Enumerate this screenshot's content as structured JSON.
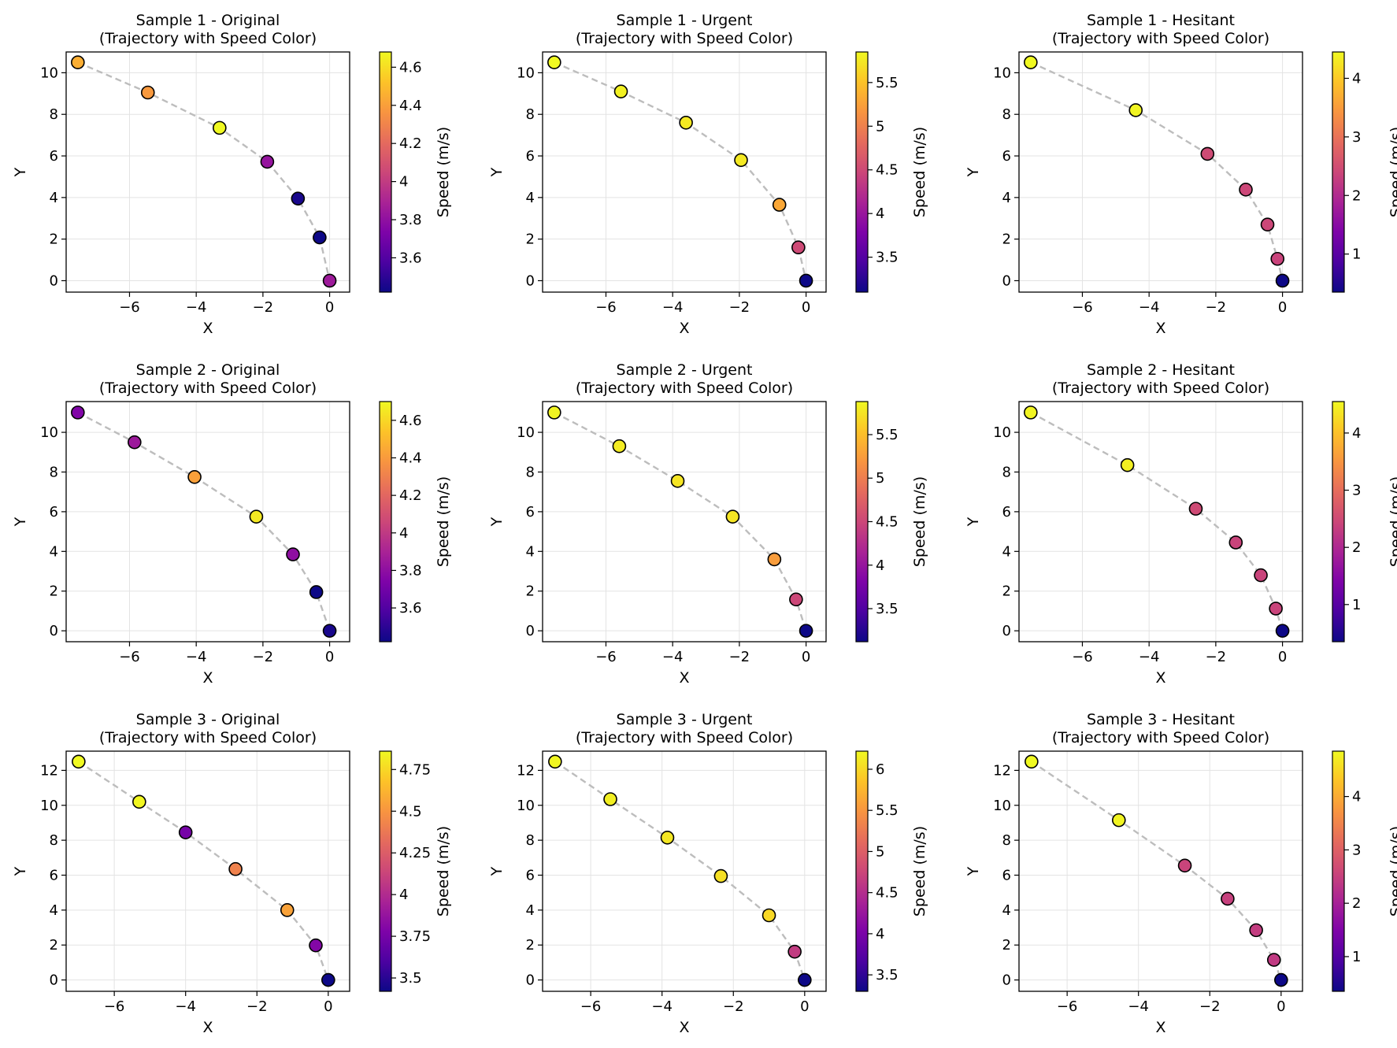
{
  "chart_data": [
    {
      "type": "scatter",
      "title": "Sample 1 - Original",
      "subtitle": "(Trajectory with Speed Color)",
      "xlabel": "X",
      "ylabel": "Y",
      "colorbar_label": "Speed (m/s)",
      "xlim": [
        -7.9,
        0.6
      ],
      "ylim": [
        -0.55,
        11.0
      ],
      "xticks": [
        -6,
        -4,
        -2,
        0
      ],
      "yticks": [
        0,
        2,
        4,
        6,
        8,
        10
      ],
      "clim": [
        3.42,
        4.68
      ],
      "cticks": [
        3.6,
        3.8,
        4.0,
        4.2,
        4.4,
        4.6
      ],
      "grid": true,
      "x": [
        -7.55,
        -5.45,
        -3.3,
        -1.87,
        -0.95,
        -0.3,
        0.0
      ],
      "y": [
        10.5,
        9.05,
        7.35,
        5.72,
        3.95,
        2.08,
        0.0
      ],
      "speed": [
        4.45,
        4.38,
        4.68,
        3.82,
        3.45,
        3.42,
        3.85
      ]
    },
    {
      "type": "scatter",
      "title": "Sample 1 - Urgent",
      "subtitle": "(Trajectory with Speed Color)",
      "xlabel": "X",
      "ylabel": "Y",
      "colorbar_label": "Speed (m/s)",
      "xlim": [
        -7.9,
        0.6
      ],
      "ylim": [
        -0.55,
        11.0
      ],
      "xticks": [
        -6,
        -4,
        -2,
        0
      ],
      "yticks": [
        0,
        2,
        4,
        6,
        8,
        10
      ],
      "clim": [
        3.1,
        5.85
      ],
      "cticks": [
        3.5,
        4.0,
        4.5,
        5.0,
        5.5
      ],
      "grid": true,
      "x": [
        -7.55,
        -5.55,
        -3.6,
        -1.95,
        -0.8,
        -0.23,
        0.0
      ],
      "y": [
        10.5,
        9.1,
        7.6,
        5.8,
        3.65,
        1.6,
        0.0
      ],
      "speed": [
        5.85,
        5.8,
        5.75,
        5.75,
        5.3,
        4.5,
        3.1
      ]
    },
    {
      "type": "scatter",
      "title": "Sample 1 - Hesitant",
      "subtitle": "(Trajectory with Speed Color)",
      "xlabel": "X",
      "ylabel": "Y",
      "colorbar_label": "Speed (m/s)",
      "xlim": [
        -7.9,
        0.6
      ],
      "ylim": [
        -0.55,
        11.0
      ],
      "xticks": [
        -6,
        -4,
        -2,
        0
      ],
      "yticks": [
        0,
        2,
        4,
        6,
        8,
        10
      ],
      "clim": [
        0.35,
        4.45
      ],
      "cticks": [
        1,
        2,
        3,
        4
      ],
      "grid": true,
      "x": [
        -7.55,
        -4.4,
        -2.25,
        -1.1,
        -0.45,
        -0.15,
        0.0
      ],
      "y": [
        10.5,
        8.2,
        6.1,
        4.38,
        2.7,
        1.05,
        0.0
      ],
      "speed": [
        4.45,
        4.4,
        2.45,
        2.4,
        2.4,
        2.35,
        0.35
      ]
    },
    {
      "type": "scatter",
      "title": "Sample 2 - Original",
      "subtitle": "(Trajectory with Speed Color)",
      "xlabel": "X",
      "ylabel": "Y",
      "colorbar_label": "Speed (m/s)",
      "xlim": [
        -7.9,
        0.6
      ],
      "ylim": [
        -0.55,
        11.55
      ],
      "xticks": [
        -6,
        -4,
        -2,
        0
      ],
      "yticks": [
        0,
        2,
        4,
        6,
        8,
        10
      ],
      "clim": [
        3.42,
        4.7
      ],
      "cticks": [
        3.6,
        3.8,
        4.0,
        4.2,
        4.4,
        4.6
      ],
      "grid": true,
      "x": [
        -7.55,
        -5.85,
        -4.05,
        -2.2,
        -1.1,
        -0.4,
        0.0
      ],
      "y": [
        11.0,
        9.5,
        7.75,
        5.75,
        3.85,
        1.95,
        0.0
      ],
      "speed": [
        3.75,
        3.85,
        4.42,
        4.65,
        3.8,
        3.42,
        3.45
      ]
    },
    {
      "type": "scatter",
      "title": "Sample 2 - Urgent",
      "subtitle": "(Trajectory with Speed Color)",
      "xlabel": "X",
      "ylabel": "Y",
      "colorbar_label": "Speed (m/s)",
      "xlim": [
        -7.9,
        0.6
      ],
      "ylim": [
        -0.55,
        11.55
      ],
      "xticks": [
        -6,
        -4,
        -2,
        0
      ],
      "yticks": [
        0,
        2,
        4,
        6,
        8,
        10
      ],
      "clim": [
        3.12,
        5.88
      ],
      "cticks": [
        3.5,
        4.0,
        4.5,
        5.0,
        5.5
      ],
      "grid": true,
      "x": [
        -7.55,
        -5.6,
        -3.85,
        -2.2,
        -0.95,
        -0.3,
        0.0
      ],
      "y": [
        11.0,
        9.3,
        7.55,
        5.75,
        3.6,
        1.58,
        0.0
      ],
      "speed": [
        5.85,
        5.8,
        5.75,
        5.75,
        5.25,
        4.5,
        3.12
      ]
    },
    {
      "type": "scatter",
      "title": "Sample 2 - Hesitant",
      "subtitle": "(Trajectory with Speed Color)",
      "xlabel": "X",
      "ylabel": "Y",
      "colorbar_label": "Speed (m/s)",
      "xlim": [
        -7.9,
        0.6
      ],
      "ylim": [
        -0.55,
        11.55
      ],
      "xticks": [
        -6,
        -4,
        -2,
        0
      ],
      "yticks": [
        0,
        2,
        4,
        6,
        8,
        10
      ],
      "clim": [
        0.35,
        4.55
      ],
      "cticks": [
        1,
        2,
        3,
        4
      ],
      "grid": true,
      "x": [
        -7.55,
        -4.65,
        -2.6,
        -1.4,
        -0.65,
        -0.2,
        0.0
      ],
      "y": [
        11.0,
        8.35,
        6.15,
        4.45,
        2.8,
        1.12,
        0.0
      ],
      "speed": [
        4.5,
        4.45,
        2.5,
        2.4,
        2.4,
        2.4,
        0.35
      ]
    },
    {
      "type": "scatter",
      "title": "Sample 3 - Original",
      "subtitle": "(Trajectory with Speed Color)",
      "xlabel": "X",
      "ylabel": "Y",
      "colorbar_label": "Speed (m/s)",
      "xlim": [
        -7.35,
        0.6
      ],
      "ylim": [
        -0.65,
        13.1
      ],
      "xticks": [
        -6,
        -4,
        -2,
        0
      ],
      "yticks": [
        0,
        2,
        4,
        6,
        8,
        10,
        12
      ],
      "clim": [
        3.42,
        4.86
      ],
      "cticks": [
        3.5,
        3.75,
        4.0,
        4.25,
        4.5,
        4.75
      ],
      "grid": true,
      "x": [
        -7.0,
        -5.3,
        -4.0,
        -2.6,
        -1.15,
        -0.35,
        0.0
      ],
      "y": [
        12.5,
        10.2,
        8.45,
        6.35,
        4.0,
        1.98,
        0.0
      ],
      "speed": [
        4.86,
        4.85,
        3.75,
        4.42,
        4.55,
        3.8,
        3.42
      ]
    },
    {
      "type": "scatter",
      "title": "Sample 3 - Urgent",
      "subtitle": "(Trajectory with Speed Color)",
      "xlabel": "X",
      "ylabel": "Y",
      "colorbar_label": "Speed (m/s)",
      "xlim": [
        -7.35,
        0.6
      ],
      "ylim": [
        -0.65,
        13.1
      ],
      "xticks": [
        -6,
        -4,
        -2,
        0
      ],
      "yticks": [
        0,
        2,
        4,
        6,
        8,
        10,
        12
      ],
      "clim": [
        3.3,
        6.22
      ],
      "cticks": [
        3.5,
        4.0,
        4.5,
        5.0,
        5.5,
        6.0
      ],
      "grid": true,
      "x": [
        -7.0,
        -5.45,
        -3.85,
        -2.35,
        -1.0,
        -0.28,
        0.0
      ],
      "y": [
        12.5,
        10.35,
        8.15,
        5.95,
        3.7,
        1.62,
        0.0
      ],
      "speed": [
        6.2,
        6.15,
        6.1,
        6.05,
        6.0,
        4.65,
        3.3
      ]
    },
    {
      "type": "scatter",
      "title": "Sample 3 - Hesitant",
      "subtitle": "(Trajectory with Speed Color)",
      "xlabel": "X",
      "ylabel": "Y",
      "colorbar_label": "Speed (m/s)",
      "xlim": [
        -7.35,
        0.6
      ],
      "ylim": [
        -0.65,
        13.1
      ],
      "xticks": [
        -6,
        -4,
        -2,
        0
      ],
      "yticks": [
        0,
        2,
        4,
        6,
        8,
        10,
        12
      ],
      "clim": [
        0.35,
        4.85
      ],
      "cticks": [
        1,
        2,
        3,
        4
      ],
      "grid": true,
      "x": [
        -7.0,
        -4.55,
        -2.7,
        -1.5,
        -0.7,
        -0.2,
        0.0
      ],
      "y": [
        12.5,
        9.15,
        6.55,
        4.65,
        2.85,
        1.15,
        0.0
      ],
      "speed": [
        4.85,
        4.8,
        2.55,
        2.5,
        2.45,
        2.4,
        0.35
      ]
    }
  ]
}
